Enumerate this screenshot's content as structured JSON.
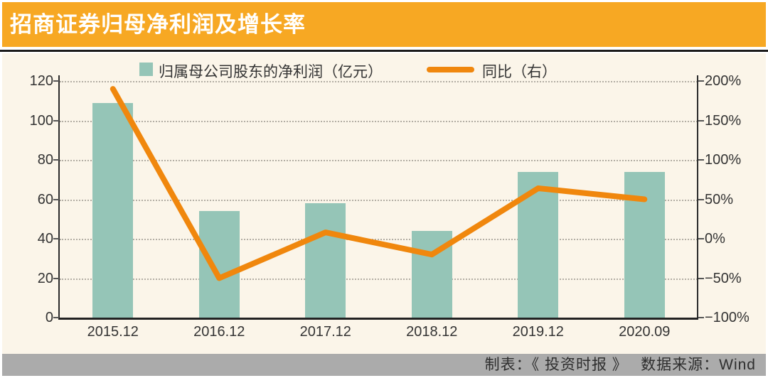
{
  "title_bar": {
    "title": "招商证券归母净利润及增长率",
    "bg_color": "#F7A823",
    "text_color": "#FFFFFF"
  },
  "panel": {
    "bg_color": "#FBF5E9"
  },
  "footer": {
    "text": "制表：《 投资时报 》　 数据来源：Wind",
    "bg_color": "#ABABAB"
  },
  "chart_data": {
    "type": "bar",
    "subtype": "bar+line dual axis",
    "categories": [
      "2015.12",
      "2016.12",
      "2017.12",
      "2018.12",
      "2019.12",
      "2020.09"
    ],
    "series": [
      {
        "name": "归属母公司股东的净利润（亿元）",
        "type": "bar",
        "axis": "left",
        "color": "#95C5B7",
        "values": [
          109,
          54,
          58,
          44,
          74,
          74
        ]
      },
      {
        "name": "同比（右）",
        "type": "line",
        "axis": "right",
        "color": "#F0870D",
        "values": [
          190,
          -50,
          8,
          -20,
          64,
          50
        ]
      }
    ],
    "left_axis": {
      "min": 0,
      "max": 120,
      "step": 20,
      "ticks": [
        "120",
        "100",
        "80",
        "60",
        "40",
        "20",
        "0"
      ]
    },
    "right_axis": {
      "min": -100,
      "max": 200,
      "step": 50,
      "ticks": [
        "200%",
        "150%",
        "100%",
        "50%",
        "0%",
        "−50%",
        "−100%"
      ]
    },
    "grid": "horizontal dotted",
    "legend_position": "top"
  }
}
